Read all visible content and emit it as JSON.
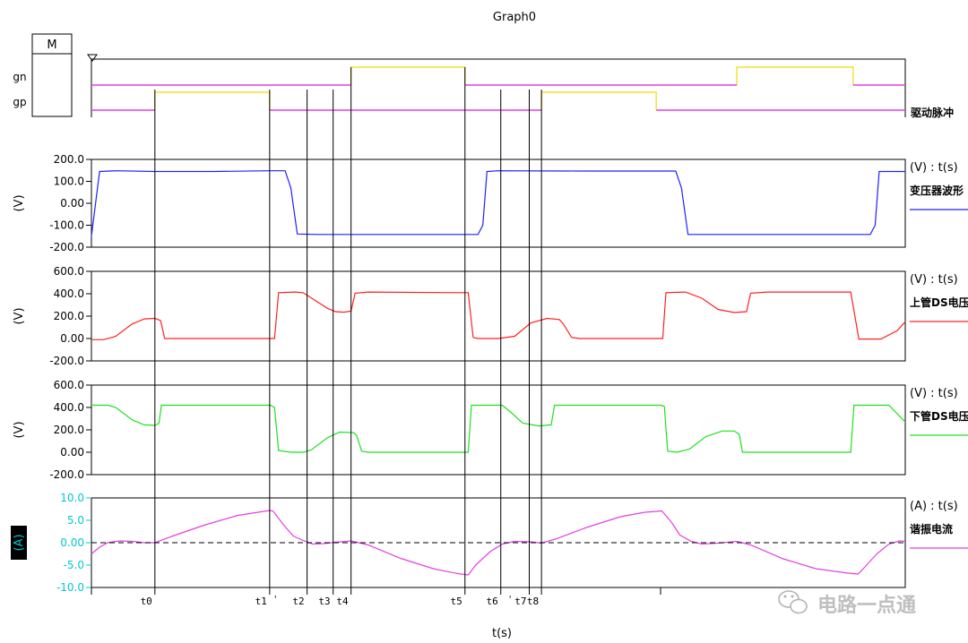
{
  "graph_title": "Graph0",
  "marker_label": "M",
  "x_axis_label": "t(s)",
  "watermark": "电路一点通",
  "colors": {
    "yellow": "#f0e030",
    "magenta": "#e040e0",
    "blue": "#2020ff",
    "red": "#ff2020",
    "green": "#20e020",
    "pink": "#e040e0",
    "cyan": "#00c8d0",
    "axis": "#000000"
  },
  "chart_data": [
    {
      "type": "line",
      "panel": "drive",
      "title": "",
      "y_labels": [
        "gn",
        "gp"
      ],
      "legend": "驱动脉冲",
      "xlim": [
        0,
        100
      ],
      "series": [
        {
          "name": "gn",
          "color": "yellow",
          "level": "high",
          "points": [
            [
              31.9,
              1
            ],
            [
              45.9,
              1
            ],
            [
              79.3,
              1
            ],
            [
              93.6,
              1
            ]
          ]
        },
        {
          "name": "gn",
          "color": "magenta",
          "level": "low",
          "points": [
            [
              0,
              0
            ],
            [
              31.9,
              0
            ],
            [
              45.9,
              0
            ],
            [
              79.3,
              0
            ],
            [
              93.6,
              0
            ],
            [
              100,
              0
            ]
          ]
        },
        {
          "name": "gp",
          "color": "yellow",
          "level": "high",
          "points": [
            [
              7.8,
              1
            ],
            [
              21.9,
              1
            ],
            [
              55.3,
              1
            ],
            [
              69.4,
              1
            ]
          ]
        },
        {
          "name": "gp",
          "color": "magenta",
          "level": "low",
          "points": [
            [
              0,
              0
            ],
            [
              7.8,
              0
            ],
            [
              21.9,
              0
            ],
            [
              55.3,
              0
            ],
            [
              69.4,
              0
            ],
            [
              100,
              0
            ]
          ]
        }
      ]
    },
    {
      "type": "line",
      "panel": "transformer",
      "title": "(V) : t(s)",
      "ylabel": "(V)",
      "legend": "变压器波形",
      "ylim": [
        -200,
        200
      ],
      "yticks": [
        "200.0",
        "100.0",
        "0.00",
        "-100.0",
        "-200.0"
      ],
      "series": [
        {
          "name": "变压器波形",
          "color": "blue",
          "points": [
            [
              0,
              -150
            ],
            [
              1,
              145
            ],
            [
              3,
              148
            ],
            [
              7.8,
              145
            ],
            [
              15,
              145
            ],
            [
              21.9,
              148
            ],
            [
              23.8,
              148
            ],
            [
              24.5,
              70
            ],
            [
              25.3,
              -140
            ],
            [
              28,
              -142
            ],
            [
              35,
              -142
            ],
            [
              45,
              -142
            ],
            [
              47.5,
              -142
            ],
            [
              48.1,
              -100
            ],
            [
              48.6,
              145
            ],
            [
              50,
              148
            ],
            [
              60,
              147
            ],
            [
              70,
              147
            ],
            [
              71.8,
              147
            ],
            [
              72.5,
              70
            ],
            [
              73.3,
              -142
            ],
            [
              80,
              -142
            ],
            [
              90,
              -142
            ],
            [
              95.7,
              -142
            ],
            [
              96.3,
              -100
            ],
            [
              96.8,
              145
            ],
            [
              100,
              145
            ]
          ]
        }
      ]
    },
    {
      "type": "line",
      "panel": "upper_ds",
      "title": "(V) : t(s)",
      "ylabel": "(V)",
      "legend": "上管DS电压",
      "ylim": [
        -200,
        600
      ],
      "yticks": [
        "600.0",
        "400.0",
        "200.0",
        "0.00",
        "-200.0"
      ],
      "series": [
        {
          "name": "上管DS电压",
          "color": "red",
          "points": [
            [
              0,
              -10
            ],
            [
              1.5,
              -10
            ],
            [
              3,
              20
            ],
            [
              5,
              130
            ],
            [
              6.5,
              175
            ],
            [
              7.8,
              180
            ],
            [
              8.5,
              160
            ],
            [
              9,
              0
            ],
            [
              10,
              0
            ],
            [
              15,
              0
            ],
            [
              21.9,
              0
            ],
            [
              22.5,
              0
            ],
            [
              23,
              410
            ],
            [
              25,
              415
            ],
            [
              26,
              410
            ],
            [
              27.5,
              340
            ],
            [
              29,
              270
            ],
            [
              30,
              240
            ],
            [
              31,
              235
            ],
            [
              31.9,
              245
            ],
            [
              32.4,
              405
            ],
            [
              34,
              415
            ],
            [
              45,
              410
            ],
            [
              46.3,
              410
            ],
            [
              46.9,
              10
            ],
            [
              47.5,
              0
            ],
            [
              50,
              0
            ],
            [
              52,
              20
            ],
            [
              54,
              140
            ],
            [
              56,
              180
            ],
            [
              57.5,
              170
            ],
            [
              58,
              130
            ],
            [
              59,
              10
            ],
            [
              60,
              0
            ],
            [
              66,
              0
            ],
            [
              70.2,
              0
            ],
            [
              70.6,
              410
            ],
            [
              73,
              415
            ],
            [
              75,
              360
            ],
            [
              77,
              260
            ],
            [
              79,
              232
            ],
            [
              80.5,
              240
            ],
            [
              81,
              405
            ],
            [
              83,
              415
            ],
            [
              93.3,
              415
            ],
            [
              94.3,
              -5
            ],
            [
              97,
              -5
            ],
            [
              99,
              70
            ],
            [
              100,
              150
            ]
          ]
        }
      ]
    },
    {
      "type": "line",
      "panel": "lower_ds",
      "title": "(V) : t(s)",
      "ylabel": "(V)",
      "legend": "下管DS电压",
      "ylim": [
        -200,
        600
      ],
      "yticks": [
        "600.0",
        "400.0",
        "200.0",
        "0.00",
        "-200.0"
      ],
      "series": [
        {
          "name": "下管DS电压",
          "color": "green",
          "points": [
            [
              0,
              420
            ],
            [
              2,
              420
            ],
            [
              3,
              400
            ],
            [
              5,
              290
            ],
            [
              6.5,
              245
            ],
            [
              7.8,
              240
            ],
            [
              8.3,
              260
            ],
            [
              8.6,
              420
            ],
            [
              10,
              420
            ],
            [
              22,
              420
            ],
            [
              22.5,
              400
            ],
            [
              23,
              15
            ],
            [
              24.5,
              0
            ],
            [
              26,
              0
            ],
            [
              27,
              20
            ],
            [
              29,
              130
            ],
            [
              30.5,
              180
            ],
            [
              32.2,
              175
            ],
            [
              32.6,
              150
            ],
            [
              33.2,
              10
            ],
            [
              34,
              0
            ],
            [
              46.3,
              0
            ],
            [
              46.7,
              420
            ],
            [
              50.5,
              420
            ],
            [
              51.5,
              360
            ],
            [
              53,
              260
            ],
            [
              55,
              235
            ],
            [
              56.5,
              245
            ],
            [
              56.9,
              420
            ],
            [
              70,
              420
            ],
            [
              70.4,
              410
            ],
            [
              70.8,
              10
            ],
            [
              72,
              0
            ],
            [
              73.5,
              30
            ],
            [
              75.5,
              140
            ],
            [
              77.5,
              190
            ],
            [
              79,
              190
            ],
            [
              79.6,
              160
            ],
            [
              80,
              0
            ],
            [
              93.3,
              0
            ],
            [
              93.7,
              420
            ],
            [
              98,
              420
            ],
            [
              100,
              270
            ]
          ]
        }
      ]
    },
    {
      "type": "line",
      "panel": "resonant_current",
      "title": "(A) : t(s)",
      "ylabel": "(A)",
      "legend": "谐振电流",
      "ylim": [
        -10,
        10
      ],
      "yticks": [
        "10.0",
        "5.0",
        "0.00",
        "-5.0",
        "-10.0"
      ],
      "series": [
        {
          "name": "谐振电流",
          "color": "pink",
          "points": [
            [
              0,
              -2.5
            ],
            [
              1,
              -1
            ],
            [
              2,
              0
            ],
            [
              3.5,
              0.4
            ],
            [
              5,
              0.3
            ],
            [
              6.5,
              0
            ],
            [
              7.8,
              0
            ],
            [
              10,
              1.5
            ],
            [
              14,
              4
            ],
            [
              18,
              6.1
            ],
            [
              21.9,
              7.2
            ],
            [
              22.3,
              7.1
            ],
            [
              23.6,
              4
            ],
            [
              24.8,
              1.5
            ],
            [
              26,
              0.5
            ],
            [
              27.2,
              -0.3
            ],
            [
              28.5,
              -0.2
            ],
            [
              30,
              0.1
            ],
            [
              31.9,
              0.4
            ],
            [
              34,
              -0.5
            ],
            [
              38,
              -3.5
            ],
            [
              42,
              -5.8
            ],
            [
              45,
              -6.9
            ],
            [
              46.3,
              -7.2
            ],
            [
              47.2,
              -5
            ],
            [
              49,
              -2
            ],
            [
              50.5,
              -0.3
            ],
            [
              52,
              0.3
            ],
            [
              54,
              0.2
            ],
            [
              55.3,
              -0.1
            ],
            [
              57,
              0.8
            ],
            [
              61,
              3.5
            ],
            [
              65,
              5.8
            ],
            [
              68,
              6.8
            ],
            [
              70.1,
              7.1
            ],
            [
              71.3,
              4.5
            ],
            [
              72.3,
              1.7
            ],
            [
              73.7,
              0.3
            ],
            [
              75,
              -0.3
            ],
            [
              77,
              -0.1
            ],
            [
              79.3,
              0.3
            ],
            [
              81,
              -0.5
            ],
            [
              85,
              -3.6
            ],
            [
              89,
              -5.8
            ],
            [
              93,
              -6.8
            ],
            [
              94.2,
              -7
            ],
            [
              95,
              -5.5
            ],
            [
              96.5,
              -2.5
            ],
            [
              98,
              -0.3
            ],
            [
              99.3,
              0.4
            ],
            [
              100,
              0.3
            ]
          ]
        },
        {
          "name": "",
          "color": "axis",
          "dashed": true,
          "points": [
            [
              0,
              0
            ],
            [
              100,
              0
            ]
          ]
        }
      ]
    }
  ],
  "time_markers": [
    {
      "label": "t0",
      "x": 7.8
    },
    {
      "label": "t1",
      "x": 21.9
    },
    {
      "label": "t2",
      "x": 26.5
    },
    {
      "label": "t3",
      "x": 29.7
    },
    {
      "label": "t4",
      "x": 31.9
    },
    {
      "label": "t5",
      "x": 45.9
    },
    {
      "label": "t6",
      "x": 50.3
    },
    {
      "label": "t7",
      "x": 53.8
    },
    {
      "label": "t8",
      "x": 55.3
    }
  ],
  "tick_mark_label": "'"
}
